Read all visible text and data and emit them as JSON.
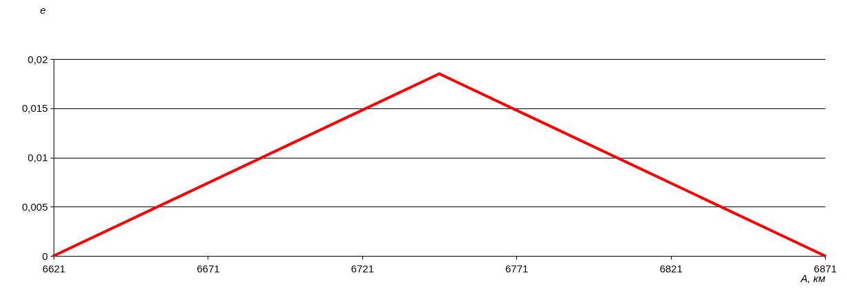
{
  "chart_data": {
    "type": "line",
    "xlabel": "A, км",
    "ylabel": "e",
    "x": [
      6621,
      6746,
      6871
    ],
    "series": [
      {
        "color": "#ff0000",
        "values": [
          0,
          0.0185,
          0
        ]
      }
    ],
    "xlim": [
      6621,
      6871
    ],
    "xticks": [
      6621,
      6671,
      6721,
      6771,
      6821,
      6871
    ],
    "ylim": [
      0,
      0.02
    ],
    "yticks": [
      {
        "value": 0,
        "label": "0"
      },
      {
        "value": 0.005,
        "label": "0,005"
      },
      {
        "value": 0.01,
        "label": "0,01"
      },
      {
        "value": 0.015,
        "label": "0,015"
      },
      {
        "value": 0.02,
        "label": "0,02"
      }
    ],
    "grid": "y",
    "legend": false,
    "marker": "none",
    "line_style": "solid"
  }
}
